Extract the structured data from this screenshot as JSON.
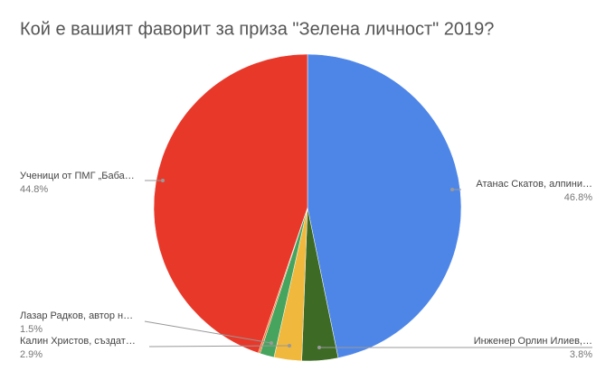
{
  "chart_data": {
    "type": "pie",
    "title": "Кой е вашият фаворит за приза \"Зелена личност\" 2019?",
    "categories": [
      "Атанас Скатов, алпини…",
      "Инженер Орлин Илиев,…",
      "Калин Христов, създат…",
      "Лазар Радков, автор н…",
      null,
      "Ученици от ПМГ „Баба…"
    ],
    "values": [
      46.8,
      3.8,
      2.9,
      1.5,
      0.2,
      44.8
    ],
    "value_labels": [
      "46.8%",
      "3.8%",
      "2.9%",
      "1.5%",
      null,
      "44.8%"
    ],
    "colors": [
      "#4e86e8",
      "#3d6b25",
      "#f0b83c",
      "#46a45e",
      "#f07a2e",
      "#e8382a"
    ]
  }
}
